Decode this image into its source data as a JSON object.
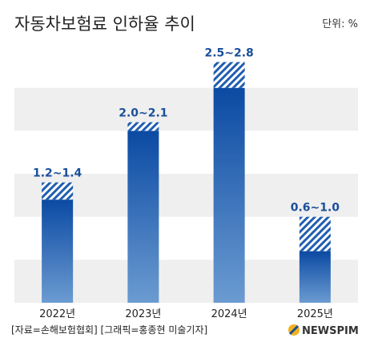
{
  "chart_data": {
    "type": "bar",
    "title": "자동차보험료 인하율 추이",
    "unit_label": "단위: %",
    "categories": [
      "2022년",
      "2023년",
      "2024년",
      "2025년"
    ],
    "series": [
      {
        "low": [
          1.2,
          2.0,
          2.5,
          0.6
        ],
        "high": [
          1.4,
          2.1,
          2.8,
          1.0
        ]
      }
    ],
    "data_labels": [
      "1.2~1.4",
      "2.0~2.1",
      "2.5~2.8",
      "0.6~1.0"
    ],
    "ylim": [
      0,
      3.0
    ],
    "grid_bands": true,
    "colors": {
      "bar_top": "#0b4aa3",
      "bar_bottom": "#6b9bd1",
      "hatch": "#1f5db0",
      "band": "#efefef",
      "label": "#1a4f9a"
    }
  },
  "footer": {
    "source": "[자료=손해보험협회] [그래픽=홍종현 미술기자]",
    "logo_text": "NEWSPIM"
  }
}
